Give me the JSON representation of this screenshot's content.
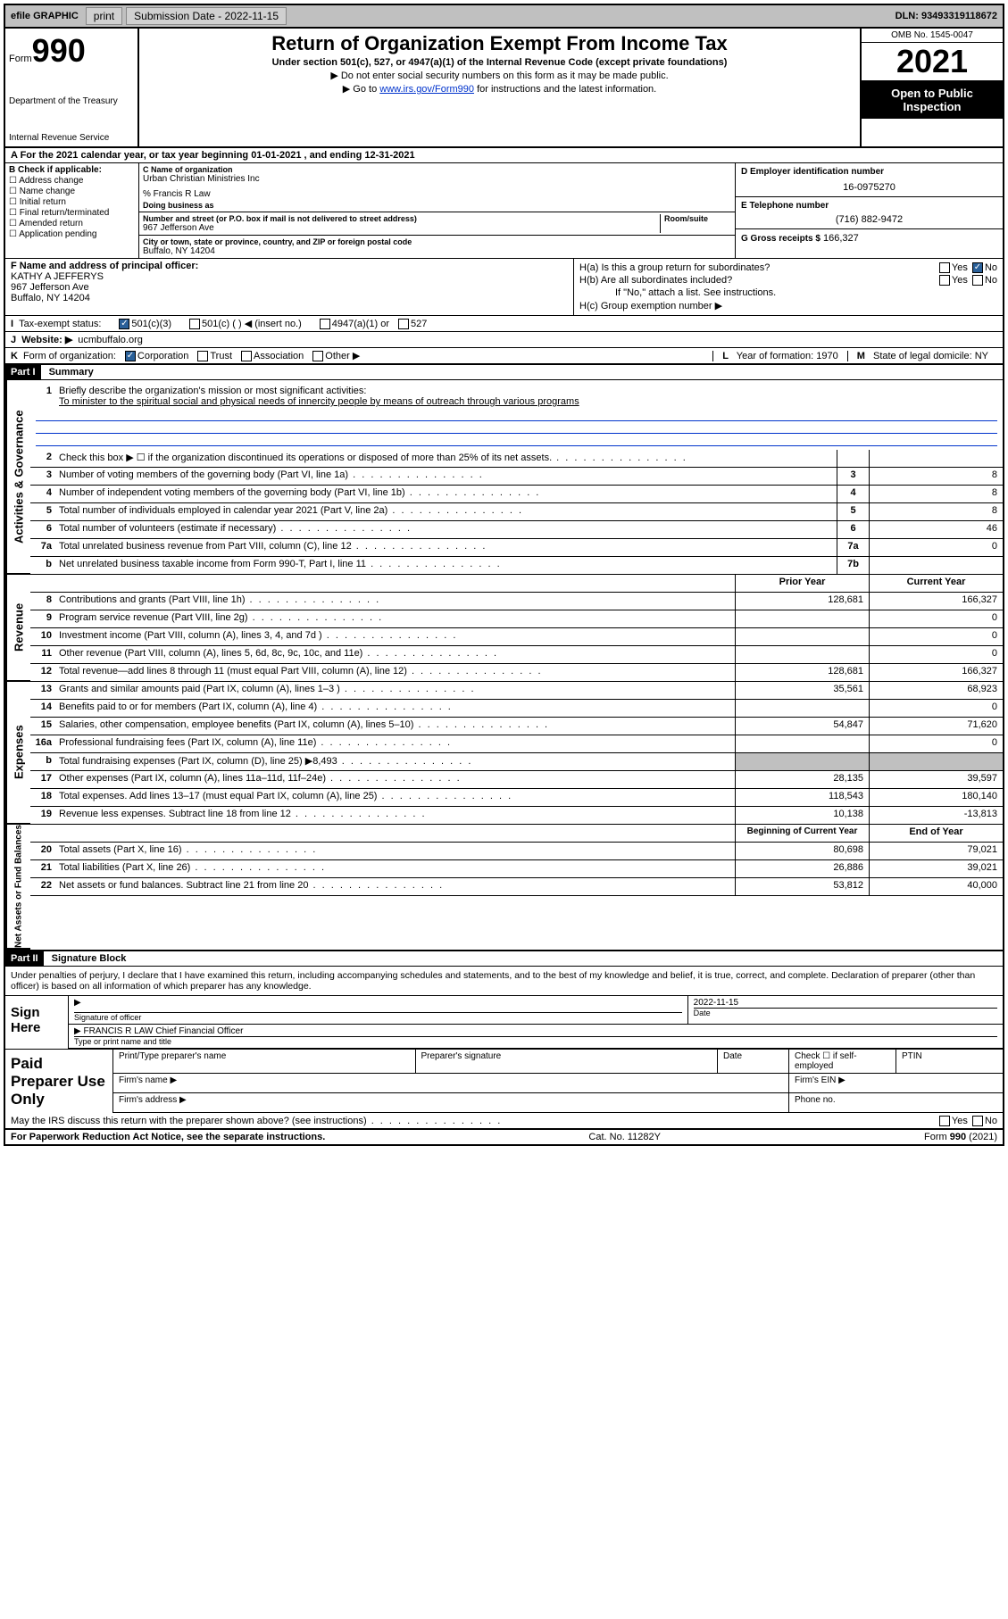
{
  "topbar": {
    "efile": "efile GRAPHIC",
    "print": "print",
    "subdate_label": "Submission Date - 2022-11-15",
    "dln": "DLN: 93493319118672"
  },
  "header": {
    "form_word": "Form",
    "form_num": "990",
    "dept": "Department of the Treasury",
    "irs": "Internal Revenue Service",
    "title": "Return of Organization Exempt From Income Tax",
    "sub": "Under section 501(c), 527, or 4947(a)(1) of the Internal Revenue Code (except private foundations)",
    "note1": "▶ Do not enter social security numbers on this form as it may be made public.",
    "note2_pre": "▶ Go to ",
    "note2_link": "www.irs.gov/Form990",
    "note2_post": " for instructions and the latest information.",
    "omb": "OMB No. 1545-0047",
    "year": "2021",
    "open": "Open to Public Inspection"
  },
  "section_a": "A For the 2021 calendar year, or tax year beginning 01-01-2021   , and ending 12-31-2021",
  "col_b": {
    "label": "B Check if applicable:",
    "opts": [
      "Address change",
      "Name change",
      "Initial return",
      "Final return/terminated",
      "Amended return",
      "Application pending"
    ]
  },
  "col_c": {
    "name_lbl": "C Name of organization",
    "name": "Urban Christian Ministries Inc",
    "care_lbl": "% Francis R Law",
    "dba_lbl": "Doing business as",
    "addr_lbl": "Number and street (or P.O. box if mail is not delivered to street address)",
    "room_lbl": "Room/suite",
    "addr": "967 Jefferson Ave",
    "city_lbl": "City or town, state or province, country, and ZIP or foreign postal code",
    "city": "Buffalo, NY  14204"
  },
  "col_de": {
    "d_lbl": "D Employer identification number",
    "d_val": "16-0975270",
    "e_lbl": "E Telephone number",
    "e_val": "(716) 882-9472",
    "g_lbl": "G Gross receipts $",
    "g_val": "166,327"
  },
  "block_f": {
    "lbl": "F Name and address of principal officer:",
    "name": "KATHY A JEFFERYS",
    "addr1": "967 Jefferson Ave",
    "addr2": "Buffalo, NY  14204"
  },
  "block_h": {
    "ha": "H(a)  Is this a group return for subordinates?",
    "hb": "H(b)  Are all subordinates included?",
    "hb_note": "If \"No,\" attach a list. See instructions.",
    "hc": "H(c)  Group exemption number ▶",
    "yes": "Yes",
    "no": "No"
  },
  "line_i": {
    "lbl": "I",
    "txt": "Tax-exempt status:",
    "o1": "501(c)(3)",
    "o2": "501(c) (  ) ◀ (insert no.)",
    "o3": "4947(a)(1) or",
    "o4": "527"
  },
  "line_j": {
    "lbl": "J",
    "txt": "Website: ▶",
    "val": "ucmbuffalo.org"
  },
  "line_k": {
    "lbl": "K",
    "txt": "Form of organization:",
    "o1": "Corporation",
    "o2": "Trust",
    "o3": "Association",
    "o4": "Other ▶"
  },
  "line_l": {
    "lbl": "L",
    "txt": "Year of formation: 1970"
  },
  "line_m": {
    "lbl": "M",
    "txt": "State of legal domicile: NY"
  },
  "part1": {
    "label": "Part I",
    "title": "Summary"
  },
  "mission": {
    "num": "1",
    "lbl": "Briefly describe the organization's mission or most significant activities:",
    "txt": "To minister to the spiritual social and physical needs of innercity people by means of outreach through various programs"
  },
  "gov_rows": [
    {
      "num": "2",
      "desc": "Check this box ▶ ☐  if the organization discontinued its operations or disposed of more than 25% of its net assets.",
      "box": "",
      "val": ""
    },
    {
      "num": "3",
      "desc": "Number of voting members of the governing body (Part VI, line 1a)",
      "box": "3",
      "val": "8"
    },
    {
      "num": "4",
      "desc": "Number of independent voting members of the governing body (Part VI, line 1b)",
      "box": "4",
      "val": "8"
    },
    {
      "num": "5",
      "desc": "Total number of individuals employed in calendar year 2021 (Part V, line 2a)",
      "box": "5",
      "val": "8"
    },
    {
      "num": "6",
      "desc": "Total number of volunteers (estimate if necessary)",
      "box": "6",
      "val": "46"
    },
    {
      "num": "7a",
      "desc": "Total unrelated business revenue from Part VIII, column (C), line 12",
      "box": "7a",
      "val": "0"
    },
    {
      "num": "b",
      "desc": "Net unrelated business taxable income from Form 990-T, Part I, line 11",
      "box": "7b",
      "val": ""
    }
  ],
  "rev_head": {
    "prior": "Prior Year",
    "curr": "Current Year"
  },
  "rev_rows": [
    {
      "num": "8",
      "desc": "Contributions and grants (Part VIII, line 1h)",
      "prior": "128,681",
      "curr": "166,327"
    },
    {
      "num": "9",
      "desc": "Program service revenue (Part VIII, line 2g)",
      "prior": "",
      "curr": "0"
    },
    {
      "num": "10",
      "desc": "Investment income (Part VIII, column (A), lines 3, 4, and 7d )",
      "prior": "",
      "curr": "0"
    },
    {
      "num": "11",
      "desc": "Other revenue (Part VIII, column (A), lines 5, 6d, 8c, 9c, 10c, and 11e)",
      "prior": "",
      "curr": "0"
    },
    {
      "num": "12",
      "desc": "Total revenue—add lines 8 through 11 (must equal Part VIII, column (A), line 12)",
      "prior": "128,681",
      "curr": "166,327"
    }
  ],
  "exp_rows": [
    {
      "num": "13",
      "desc": "Grants and similar amounts paid (Part IX, column (A), lines 1–3 )",
      "prior": "35,561",
      "curr": "68,923"
    },
    {
      "num": "14",
      "desc": "Benefits paid to or for members (Part IX, column (A), line 4)",
      "prior": "",
      "curr": "0"
    },
    {
      "num": "15",
      "desc": "Salaries, other compensation, employee benefits (Part IX, column (A), lines 5–10)",
      "prior": "54,847",
      "curr": "71,620"
    },
    {
      "num": "16a",
      "desc": "Professional fundraising fees (Part IX, column (A), line 11e)",
      "prior": "",
      "curr": "0"
    },
    {
      "num": "b",
      "desc": "Total fundraising expenses (Part IX, column (D), line 25) ▶8,493",
      "prior": "shade",
      "curr": "shade"
    },
    {
      "num": "17",
      "desc": "Other expenses (Part IX, column (A), lines 11a–11d, 11f–24e)",
      "prior": "28,135",
      "curr": "39,597"
    },
    {
      "num": "18",
      "desc": "Total expenses. Add lines 13–17 (must equal Part IX, column (A), line 25)",
      "prior": "118,543",
      "curr": "180,140"
    },
    {
      "num": "19",
      "desc": "Revenue less expenses. Subtract line 18 from line 12",
      "prior": "10,138",
      "curr": "-13,813"
    }
  ],
  "net_head": {
    "beg": "Beginning of Current Year",
    "end": "End of Year"
  },
  "net_rows": [
    {
      "num": "20",
      "desc": "Total assets (Part X, line 16)",
      "prior": "80,698",
      "curr": "79,021"
    },
    {
      "num": "21",
      "desc": "Total liabilities (Part X, line 26)",
      "prior": "26,886",
      "curr": "39,021"
    },
    {
      "num": "22",
      "desc": "Net assets or fund balances. Subtract line 21 from line 20",
      "prior": "53,812",
      "curr": "40,000"
    }
  ],
  "side_labels": {
    "gov": "Activities & Governance",
    "rev": "Revenue",
    "exp": "Expenses",
    "net": "Net Assets or\nFund Balances"
  },
  "part2": {
    "label": "Part II",
    "title": "Signature Block"
  },
  "perjury": "Under penalties of perjury, I declare that I have examined this return, including accompanying schedules and statements, and to the best of my knowledge and belief, it is true, correct, and complete. Declaration of preparer (other than officer) is based on all information of which preparer has any knowledge.",
  "sign": {
    "label": "Sign Here",
    "sig_lbl": "Signature of officer",
    "date_lbl": "Date",
    "date_val": "2022-11-15",
    "name": "FRANCIS R LAW Chief Financial Officer",
    "name_lbl": "Type or print name and title"
  },
  "paid": {
    "label": "Paid Preparer Use Only",
    "h1": "Print/Type preparer's name",
    "h2": "Preparer's signature",
    "h3": "Date",
    "h4": "Check ☐ if self-employed",
    "h5": "PTIN",
    "firm_name": "Firm's name  ▶",
    "firm_ein": "Firm's EIN ▶",
    "firm_addr": "Firm's address ▶",
    "phone": "Phone no."
  },
  "may_irs": "May the IRS discuss this return with the preparer shown above? (see instructions)",
  "footer": {
    "left": "For Paperwork Reduction Act Notice, see the separate instructions.",
    "mid": "Cat. No. 11282Y",
    "right": "Form 990 (2021)"
  }
}
